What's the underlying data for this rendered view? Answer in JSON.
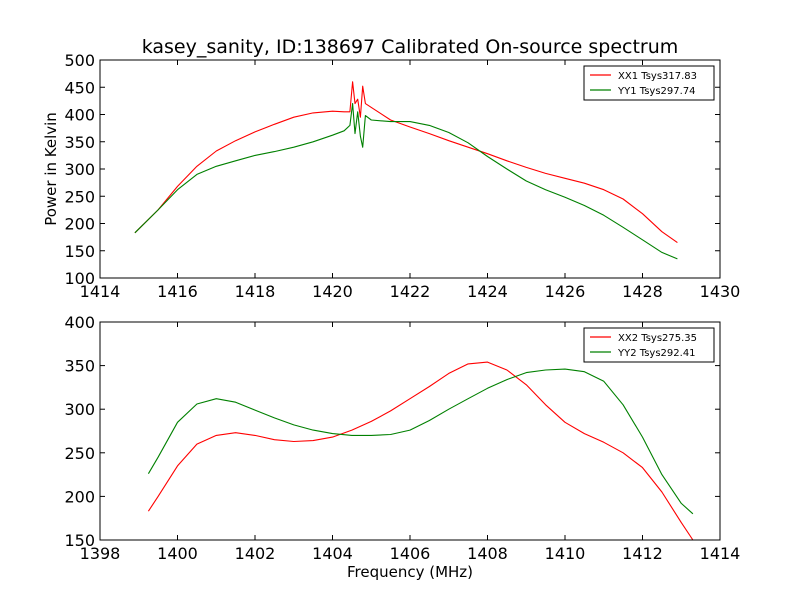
{
  "title": "kasey_sanity, ID:138697 Calibrated On-source spectrum",
  "chart_data": [
    {
      "type": "line",
      "xlim": [
        1414,
        1430
      ],
      "ylim": [
        100,
        500
      ],
      "ylabel": "Power in Kelvin",
      "xlabel": "",
      "x_ticks": [
        1414,
        1416,
        1418,
        1420,
        1422,
        1424,
        1426,
        1428,
        1430
      ],
      "y_ticks": [
        100,
        150,
        200,
        250,
        300,
        350,
        400,
        450,
        500
      ],
      "legend_position": "top-right",
      "grid": false,
      "series": [
        {
          "name": "XX1 Tsys317.83",
          "color": "#ff0000",
          "x": [
            1414.9,
            1415.5,
            1416.0,
            1416.5,
            1417.0,
            1417.5,
            1418.0,
            1418.5,
            1419.0,
            1419.5,
            1420.0,
            1420.3,
            1420.45,
            1420.52,
            1420.58,
            1420.65,
            1420.72,
            1420.78,
            1420.85,
            1421.0,
            1421.5,
            1422.0,
            1422.5,
            1423.0,
            1423.5,
            1424.0,
            1424.5,
            1425.0,
            1425.5,
            1426.0,
            1426.5,
            1427.0,
            1427.5,
            1428.0,
            1428.5,
            1428.9
          ],
          "y": [
            183,
            225,
            268,
            305,
            333,
            352,
            368,
            382,
            395,
            403,
            406,
            405,
            405,
            460,
            420,
            428,
            395,
            452,
            420,
            413,
            390,
            377,
            365,
            352,
            340,
            328,
            315,
            303,
            292,
            283,
            274,
            262,
            245,
            218,
            185,
            165
          ]
        },
        {
          "name": "YY1 Tsys297.74",
          "color": "#008000",
          "x": [
            1414.9,
            1415.5,
            1416.0,
            1416.5,
            1417.0,
            1417.5,
            1418.0,
            1418.5,
            1419.0,
            1419.5,
            1420.0,
            1420.3,
            1420.45,
            1420.52,
            1420.58,
            1420.65,
            1420.72,
            1420.78,
            1420.85,
            1421.0,
            1421.5,
            1422.0,
            1422.5,
            1423.0,
            1423.5,
            1424.0,
            1424.5,
            1425.0,
            1425.5,
            1426.0,
            1426.5,
            1427.0,
            1427.5,
            1428.0,
            1428.5,
            1428.9
          ],
          "y": [
            183,
            225,
            262,
            290,
            305,
            315,
            325,
            332,
            340,
            350,
            362,
            370,
            380,
            420,
            365,
            405,
            360,
            340,
            398,
            390,
            387,
            387,
            380,
            367,
            348,
            323,
            300,
            278,
            262,
            248,
            233,
            215,
            193,
            170,
            147,
            135
          ]
        }
      ]
    },
    {
      "type": "line",
      "xlim": [
        1398,
        1414
      ],
      "ylim": [
        150,
        400
      ],
      "xlabel": "Frequency (MHz)",
      "ylabel": "",
      "x_ticks": [
        1398,
        1400,
        1402,
        1404,
        1406,
        1408,
        1410,
        1412,
        1414
      ],
      "y_ticks": [
        150,
        200,
        250,
        300,
        350,
        400
      ],
      "legend_position": "top-right",
      "grid": false,
      "series": [
        {
          "name": "XX2 Tsys275.35",
          "color": "#ff0000",
          "x": [
            1399.25,
            1399.5,
            1400.0,
            1400.5,
            1401.0,
            1401.5,
            1402.0,
            1402.5,
            1403.0,
            1403.5,
            1404.0,
            1404.5,
            1405.0,
            1405.5,
            1406.0,
            1406.5,
            1407.0,
            1407.5,
            1408.0,
            1408.5,
            1409.0,
            1409.5,
            1410.0,
            1410.5,
            1411.0,
            1411.5,
            1412.0,
            1412.5,
            1413.0,
            1413.3
          ],
          "y": [
            183,
            200,
            235,
            260,
            270,
            273,
            270,
            265,
            263,
            264,
            268,
            276,
            286,
            298,
            312,
            326,
            341,
            352,
            354,
            345,
            328,
            305,
            285,
            272,
            262,
            250,
            233,
            205,
            170,
            150
          ]
        },
        {
          "name": "YY2 Tsys292.41",
          "color": "#008000",
          "x": [
            1399.25,
            1399.5,
            1400.0,
            1400.5,
            1401.0,
            1401.5,
            1402.0,
            1402.5,
            1403.0,
            1403.5,
            1404.0,
            1404.5,
            1405.0,
            1405.5,
            1406.0,
            1406.5,
            1407.0,
            1407.5,
            1408.0,
            1408.5,
            1409.0,
            1409.5,
            1410.0,
            1410.5,
            1411.0,
            1411.5,
            1412.0,
            1412.5,
            1413.0,
            1413.3
          ],
          "y": [
            226,
            245,
            285,
            306,
            312,
            308,
            299,
            290,
            282,
            276,
            272,
            270,
            270,
            271,
            276,
            287,
            300,
            312,
            324,
            334,
            342,
            345,
            346,
            343,
            332,
            305,
            268,
            225,
            192,
            180
          ]
        }
      ]
    }
  ]
}
